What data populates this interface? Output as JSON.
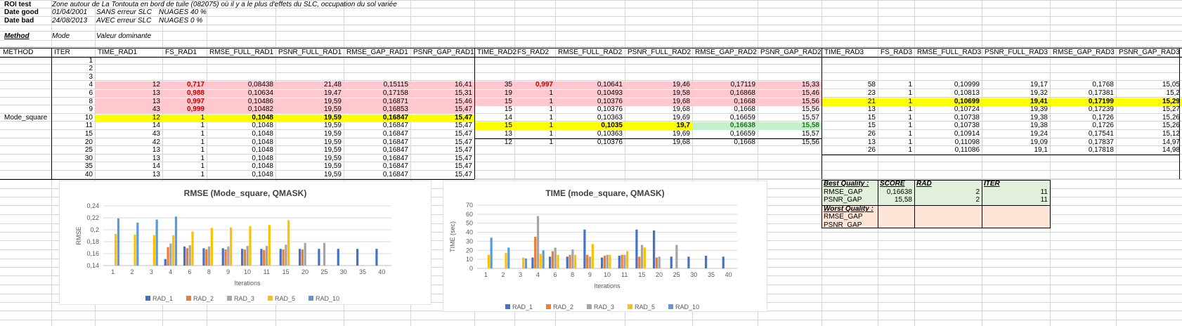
{
  "header": {
    "roi_label": "ROI test",
    "roi_value": "Zone autour de La Tontouta en bord de tuile (082075) où il y a le plus d'effets du SLC, occupation du sol variée",
    "good_label": "Date good",
    "good_date": "01/04/2001",
    "good_slc": "SANS erreur SLC",
    "good_clouds": "NUAGES 40 %",
    "bad_label": "Date bad",
    "bad_date": "24/08/2013",
    "bad_slc": "AVEC erreur SLC",
    "bad_clouds": "NUAGES 0 %",
    "method_label": "Method",
    "method_col2": "Mode",
    "method_col3": "Valeur dominante"
  },
  "table": {
    "method_name": "Mode_square",
    "headers": [
      "METHOD",
      "ITER",
      "TIME_RAD1",
      "FS_RAD1",
      "RMSE_FULL_RAD1",
      "PSNR_FULL_RAD1",
      "RMSE_GAP_RAD1",
      "PSNR_GAP_RAD1",
      "TIME_RAD2",
      "FS_RAD2",
      "RMSE_FULL_RAD2",
      "PSNR_FULL_RAD2",
      "RMSE_GAP_RAD2",
      "PSNR_GAP_RAD2",
      "TIME_RAD3",
      "FS_RAD3",
      "RMSE_FULL_RAD3",
      "PSNR_FULL_RAD3",
      "RMSE_GAP_RAD3",
      "PSNR_GAP_RAD3"
    ],
    "iters": [
      "1",
      "2",
      "3",
      "4",
      "6",
      "8",
      "9",
      "10",
      "11",
      "15",
      "20",
      "25",
      "30",
      "35",
      "40"
    ],
    "rad1": [
      [],
      [],
      [],
      [
        "12",
        "0,717",
        "0,08438",
        "21,48",
        "0,15115",
        "16,41"
      ],
      [
        "13",
        "0,988",
        "0,10634",
        "19,47",
        "0,17158",
        "15,31"
      ],
      [
        "13",
        "0,997",
        "0,10486",
        "19,59",
        "0,16871",
        "15,46"
      ],
      [
        "43",
        "0,999",
        "0,10482",
        "19,59",
        "0,16853",
        "15,47"
      ],
      [
        "12",
        "1",
        "0,1048",
        "19,59",
        "0,16847",
        "15,47"
      ],
      [
        "14",
        "1",
        "0,1048",
        "19,59",
        "0,16847",
        "15,47"
      ],
      [
        "43",
        "1",
        "0,1048",
        "19,59",
        "0,16847",
        "15,47"
      ],
      [
        "42",
        "1",
        "0,1048",
        "19,59",
        "0,16847",
        "15,47"
      ],
      [
        "13",
        "1",
        "0,1048",
        "19,59",
        "0,16847",
        "15,47"
      ],
      [
        "13",
        "1",
        "0,1048",
        "19,59",
        "0,16847",
        "15,47"
      ],
      [
        "14",
        "1",
        "0,1048",
        "19,59",
        "0,16847",
        "15,47"
      ],
      [
        "13",
        "1",
        "0,1048",
        "19,59",
        "0,16847",
        "15,47"
      ]
    ],
    "rad2": [
      [],
      [],
      [],
      [
        "35",
        "0,997",
        "0,10641",
        "19,46",
        "0,17119",
        "15,33"
      ],
      [
        "19",
        "1",
        "0,10493",
        "19,58",
        "0,16868",
        "15,46"
      ],
      [
        "15",
        "1",
        "0,10376",
        "19,68",
        "0,1668",
        "15,56"
      ],
      [
        "15",
        "1",
        "0,10376",
        "19,68",
        "0,1668",
        "15,56"
      ],
      [
        "14",
        "1",
        "0,10363",
        "19,69",
        "0,16659",
        "15,57"
      ],
      [
        "15",
        "1",
        "0,1035",
        "19,7",
        "0,16638",
        "15,58"
      ],
      [
        "13",
        "1",
        "0,10363",
        "19,69",
        "0,16659",
        "15,57"
      ],
      [
        "12",
        "1",
        "0,10376",
        "19,68",
        "0,1668",
        "15,56"
      ],
      [],
      [],
      [],
      []
    ],
    "rad3": [
      [],
      [],
      [],
      [
        "58",
        "1",
        "0,10999",
        "19,17",
        "0,1768",
        "15,05"
      ],
      [
        "23",
        "1",
        "0,10813",
        "19,32",
        "0,17381",
        "15,2"
      ],
      [
        "21",
        "1",
        "0,10699",
        "19,41",
        "0,17199",
        "15,29"
      ],
      [
        "13",
        "1",
        "0,10724",
        "19,39",
        "0,17239",
        "15,27"
      ],
      [
        "15",
        "1",
        "0,10738",
        "19,38",
        "0,1726",
        "15,26"
      ],
      [
        "15",
        "1",
        "0,10738",
        "19,38",
        "0,1726",
        "15,26"
      ],
      [
        "26",
        "1",
        "0,10914",
        "19,24",
        "0,17541",
        "15,12"
      ],
      [
        "13",
        "1",
        "0,11098",
        "19,09",
        "0,17837",
        "14,97"
      ],
      [
        "26",
        "1",
        "0,11086",
        "19,1",
        "0,17818",
        "14,98"
      ],
      [],
      [],
      []
    ]
  },
  "quality": {
    "best_label": "Best Quality :",
    "score_label": "SCORE",
    "rad_label": "RAD",
    "iter_label": "ITER",
    "best_rows": [
      {
        "name": "RMSE_GAP",
        "score": "0,16638",
        "rad": "2",
        "iter": "11"
      },
      {
        "name": "PSNR_GAP",
        "score": "15,58",
        "rad": "2",
        "iter": "11"
      }
    ],
    "worst_label": "Worst Quality :",
    "worst_rows": [
      "RMSE_GAP",
      "PSNR_GAP"
    ]
  },
  "colors": {
    "pink": "#ffc7ce",
    "yellow": "#ffff00",
    "green_fill": "#c6efce",
    "best_fill": "#e2efda",
    "worst_fill": "#fce4d6",
    "rad1": "#4472c4",
    "rad2": "#ed7d31",
    "rad3": "#a5a5a5",
    "rad5": "#ffc000",
    "rad10": "#5b9bd5"
  },
  "chart_data": [
    {
      "type": "bar",
      "title": "RMSE (Mode_square, QMASK)",
      "xlabel": "Iterations",
      "ylabel": "RMSE",
      "ylim": [
        0.14,
        0.24
      ],
      "yticks": [
        "0,14",
        "0,16",
        "0,18",
        "0,2",
        "0,22",
        "0,24"
      ],
      "grid": true,
      "legend": "bottom",
      "categories": [
        "1",
        "2",
        "3",
        "4",
        "6",
        "8",
        "9",
        "10",
        "11",
        "15",
        "20",
        "25",
        "30",
        "35",
        "40"
      ],
      "series": [
        {
          "name": "RAD_1",
          "values": [
            null,
            null,
            null,
            0.151,
            0.172,
            0.169,
            0.169,
            0.168,
            0.168,
            0.168,
            0.168,
            0.168,
            0.168,
            0.168,
            0.168
          ]
        },
        {
          "name": "RAD_2",
          "values": [
            null,
            null,
            null,
            0.171,
            0.169,
            0.167,
            0.167,
            0.167,
            0.166,
            0.167,
            0.167,
            null,
            null,
            null,
            null
          ]
        },
        {
          "name": "RAD_3",
          "values": [
            null,
            null,
            null,
            0.177,
            0.174,
            0.172,
            0.172,
            0.173,
            0.173,
            0.175,
            0.178,
            0.178,
            null,
            null,
            null
          ]
        },
        {
          "name": "RAD_5",
          "values": [
            0.193,
            0.192,
            0.191,
            0.191,
            0.197,
            0.203,
            0.204,
            0.206,
            0.208,
            0.216,
            null,
            null,
            null,
            null,
            null
          ]
        },
        {
          "name": "RAD_10",
          "values": [
            0.219,
            0.212,
            0.217,
            0.222,
            null,
            null,
            null,
            null,
            null,
            null,
            null,
            null,
            null,
            null,
            null
          ]
        }
      ]
    },
    {
      "type": "bar",
      "title": "TIME (mode_square, QMASK)",
      "xlabel": "Iterations",
      "ylabel": "TIME (sec)",
      "ylim": [
        0,
        70
      ],
      "yticks": [
        "0",
        "10",
        "20",
        "30",
        "40",
        "50",
        "60",
        "70"
      ],
      "grid": true,
      "legend": "bottom",
      "categories": [
        "1",
        "2",
        "3",
        "4",
        "6",
        "8",
        "9",
        "10",
        "11",
        "15",
        "20",
        "25",
        "30",
        "35",
        "40"
      ],
      "series": [
        {
          "name": "RAD_1",
          "values": [
            null,
            null,
            null,
            12,
            13,
            13,
            43,
            12,
            14,
            43,
            42,
            13,
            13,
            14,
            13
          ]
        },
        {
          "name": "RAD_2",
          "values": [
            null,
            null,
            null,
            35,
            19,
            15,
            15,
            14,
            15,
            13,
            12,
            null,
            null,
            null,
            null
          ]
        },
        {
          "name": "RAD_3",
          "values": [
            null,
            null,
            null,
            58,
            23,
            21,
            13,
            15,
            15,
            26,
            13,
            26,
            null,
            null,
            null
          ]
        },
        {
          "name": "RAD_5",
          "values": [
            15,
            17,
            12,
            16,
            15,
            15,
            27,
            15,
            19,
            23,
            null,
            null,
            null,
            null,
            null
          ]
        },
        {
          "name": "RAD_10",
          "values": [
            34,
            23,
            11,
            20,
            null,
            null,
            null,
            null,
            null,
            null,
            null,
            null,
            null,
            null,
            null
          ]
        }
      ]
    }
  ]
}
